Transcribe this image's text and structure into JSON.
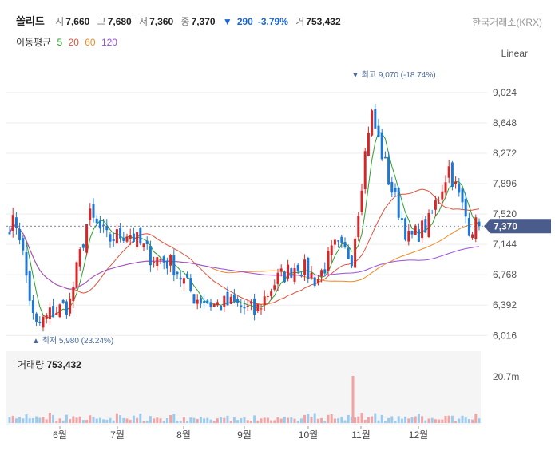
{
  "header": {
    "name": "쏠리드",
    "open_label": "시",
    "open": "7,660",
    "high_label": "고",
    "high": "7,680",
    "low_label": "저",
    "low": "7,360",
    "close_label": "종",
    "close": "7,370",
    "change_arrow": "▼",
    "change": "290",
    "change_pct": "-3.79%",
    "volume_label": "거",
    "volume": "753,432"
  },
  "exchange": "한국거래소(KRX)",
  "moving_average": {
    "label": "이동평균",
    "periods": [
      {
        "value": "5",
        "color": "#2ca02c"
      },
      {
        "value": "20",
        "color": "#e0503a"
      },
      {
        "value": "60",
        "color": "#f08a24"
      },
      {
        "value": "120",
        "color": "#9b4fd8"
      }
    ]
  },
  "scale_mode": "Linear",
  "volume_panel": {
    "label": "거래량",
    "value": "753,432",
    "tick": "20.7m"
  },
  "annotations": {
    "high": "▼ 최고 9,070 (-18.74%)",
    "low": "▲ 최저 5,980 (23.24%)",
    "last_price": "7,370"
  },
  "colors": {
    "up": "#d62728",
    "down": "#1f77d4",
    "last_price_bg": "#4a5c8c"
  },
  "chart_data": {
    "type": "candlestick",
    "y_ticks": [
      "9,024",
      "8,648",
      "8,272",
      "7,896",
      "7,520",
      "7,144",
      "6,768",
      "6,392",
      "6,016"
    ],
    "ylim": [
      5900,
      9300
    ],
    "x_ticks": [
      "6월",
      "7월",
      "8월",
      "9월",
      "10월",
      "11월",
      "12월"
    ],
    "months_close_approx": {
      "5월": [
        7400,
        6100,
        6300
      ],
      "6월": [
        6400,
        7500,
        7200
      ],
      "7월": [
        7300,
        7000,
        6900
      ],
      "8월": [
        6500,
        6400,
        6400
      ],
      "9월": [
        6300,
        6700,
        6900
      ],
      "10월": [
        6700,
        7100,
        7000
      ],
      "11월": [
        8800,
        7900,
        7200
      ],
      "12월": [
        7400,
        8100,
        7370
      ]
    },
    "high_point": {
      "value": 9070,
      "month": "11월"
    },
    "low_point": {
      "value": 5980,
      "month": "5월"
    },
    "last_close": 7370,
    "grid": true
  }
}
